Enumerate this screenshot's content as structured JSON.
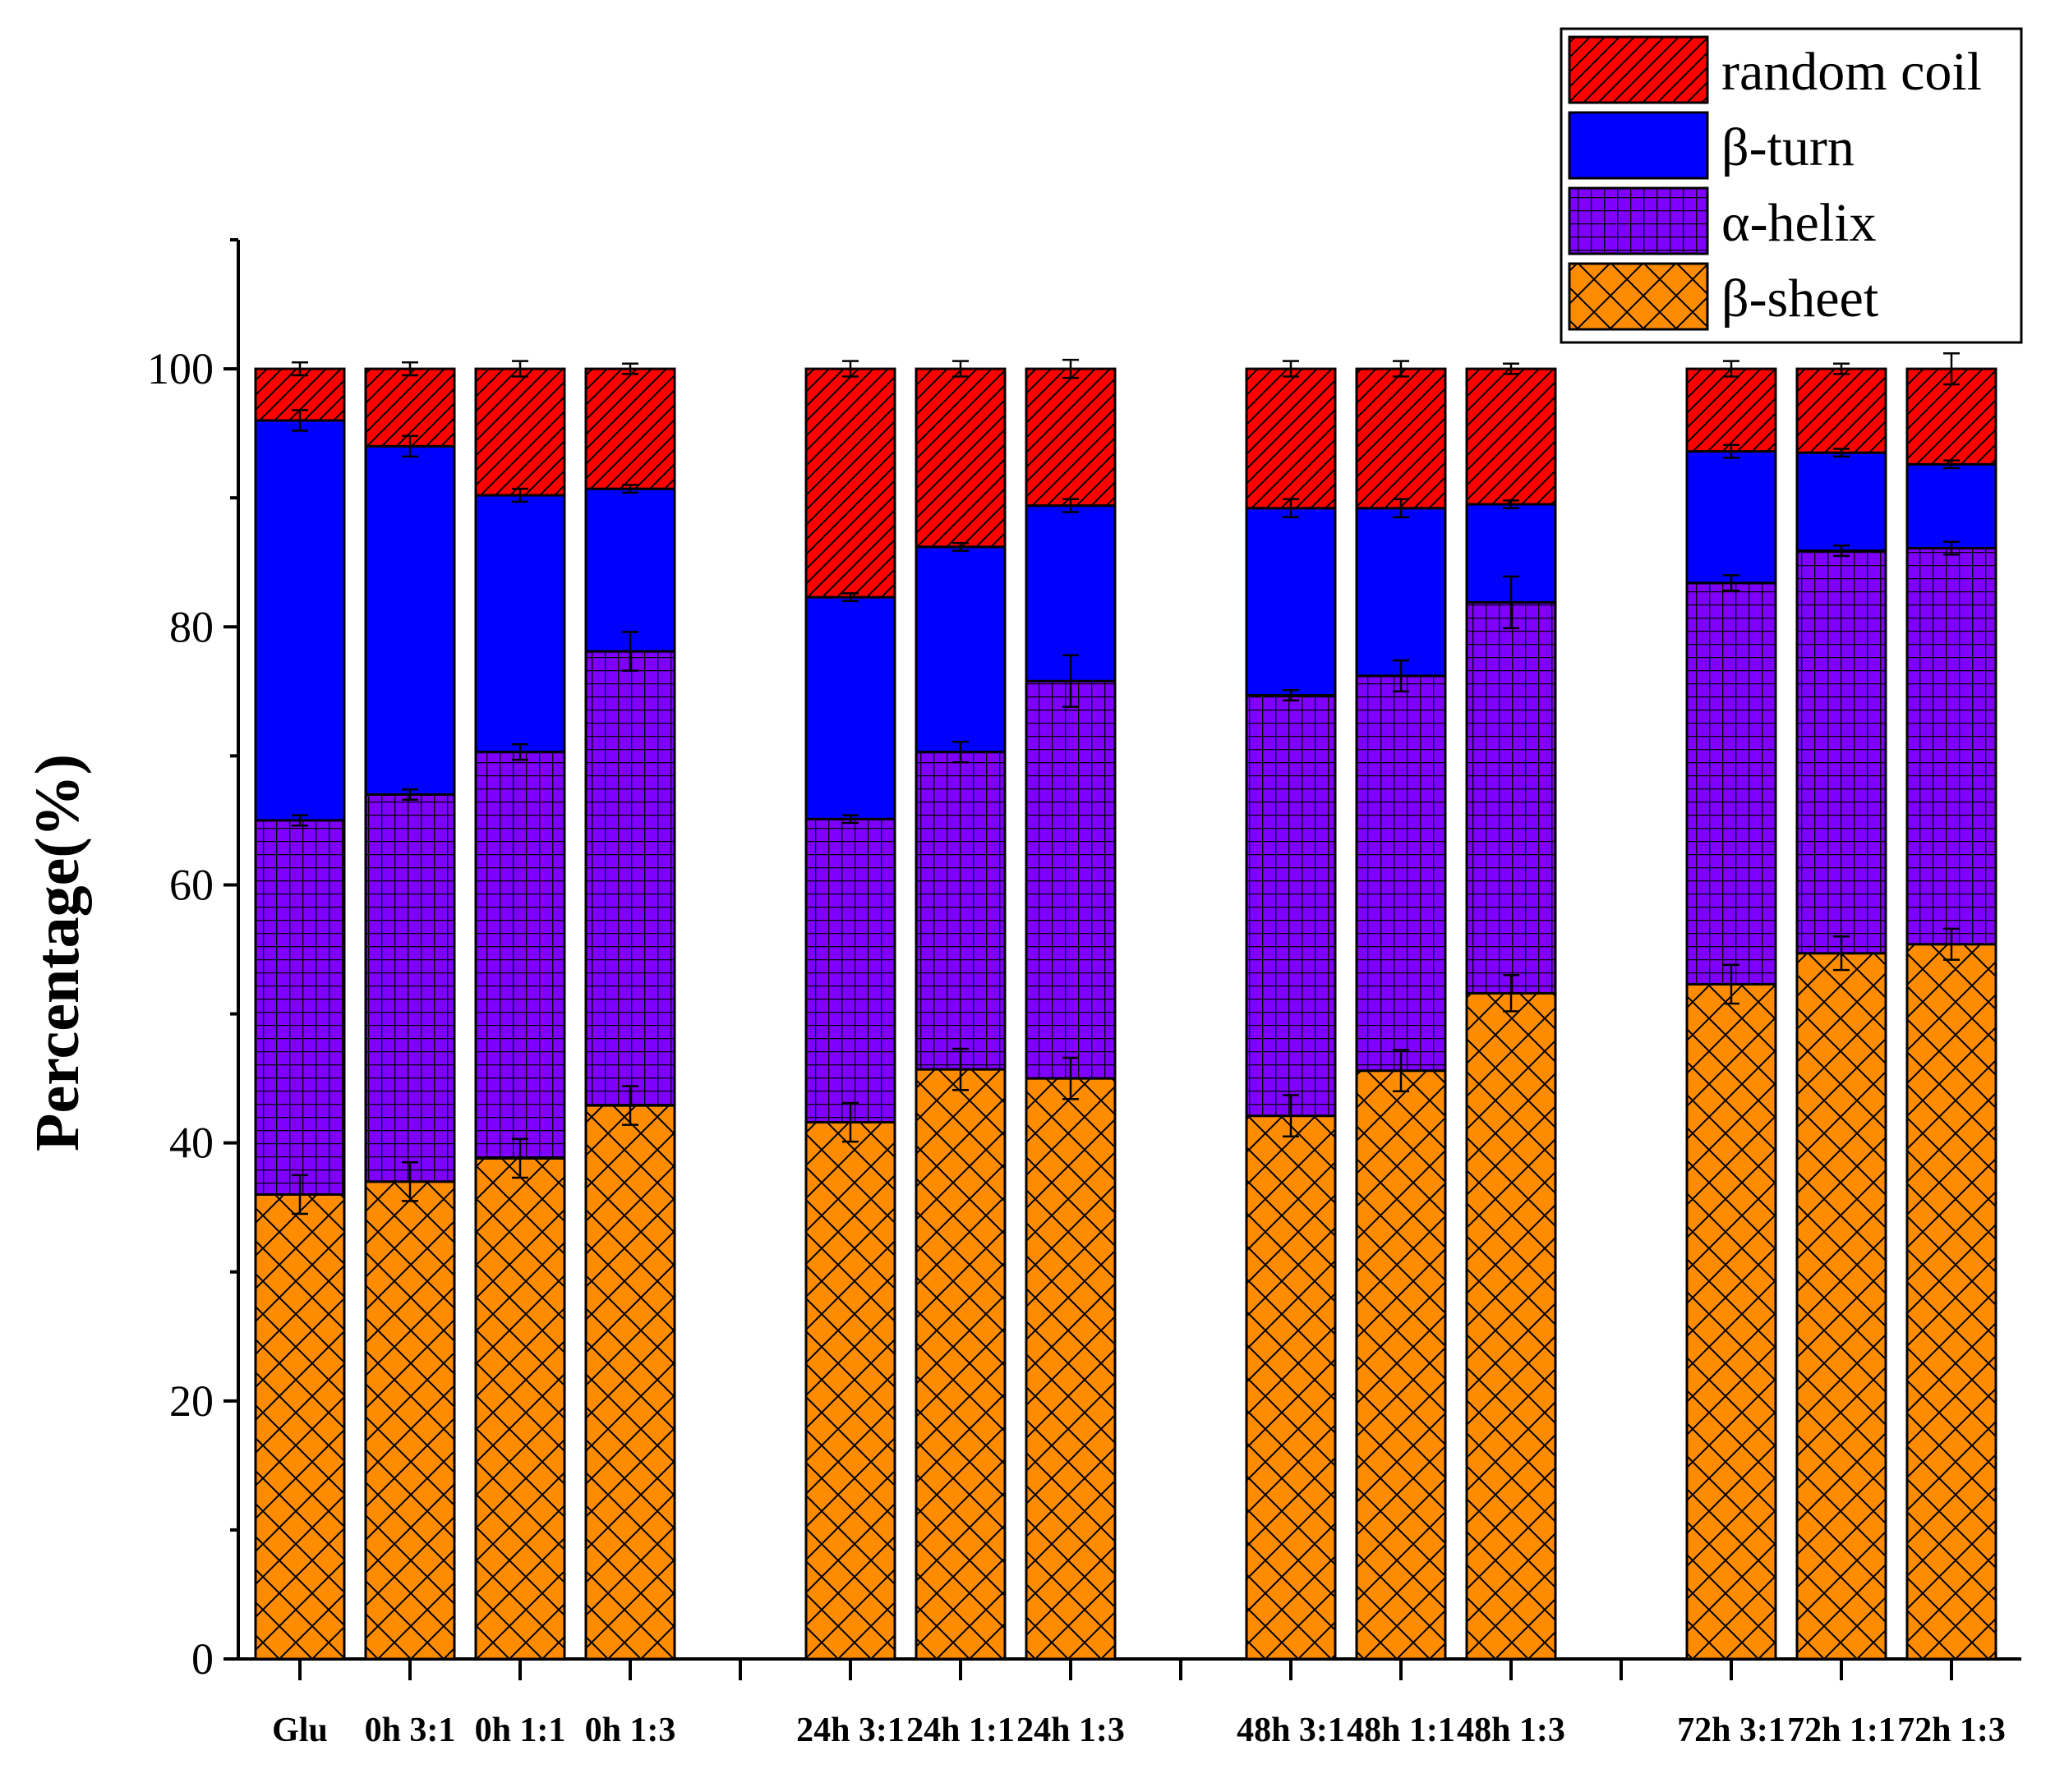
{
  "chart_data": {
    "type": "bar",
    "stacked": true,
    "title": "",
    "xlabel": "",
    "ylabel": "Percentage(%)",
    "ylim": [
      0,
      110
    ],
    "yticks": [
      0,
      20,
      40,
      60,
      80,
      100
    ],
    "legend_position": "top-right",
    "categories": [
      "Glu",
      "0h 3:1",
      "0h 1:1",
      "0h 1:3",
      "24h 3:1",
      "24h 1:1",
      "24h 1:3",
      "48h 3:1",
      "48h 1:1",
      "48h 1:3",
      "72h 3:1",
      "72h 1:1",
      "72h 1:3"
    ],
    "groups": [
      [
        0,
        1,
        2,
        3
      ],
      [
        4,
        5,
        6
      ],
      [
        7,
        8,
        9
      ],
      [
        10,
        11,
        12
      ]
    ],
    "series": [
      {
        "name": "β-sheet",
        "color": "#ff8c00",
        "pattern": "crosshatch-diagonal",
        "values": [
          36.0,
          37.0,
          38.8,
          42.9,
          41.6,
          45.7,
          45.0,
          42.1,
          45.6,
          51.6,
          52.3,
          54.7,
          55.4
        ],
        "errors": [
          1.5,
          1.5,
          1.5,
          1.5,
          1.5,
          1.6,
          1.6,
          1.6,
          1.6,
          1.4,
          1.5,
          1.3,
          1.2
        ]
      },
      {
        "name": "α-helix",
        "color": "#8000ff",
        "pattern": "grid",
        "values": [
          29.0,
          30.0,
          31.5,
          35.2,
          23.5,
          24.6,
          30.8,
          32.6,
          30.6,
          30.3,
          31.1,
          31.2,
          30.7
        ],
        "errors": [
          0.4,
          0.4,
          0.6,
          1.5,
          0.3,
          0.8,
          2.0,
          0.4,
          1.2,
          2.0,
          0.6,
          0.4,
          0.5
        ]
      },
      {
        "name": "β-turn",
        "color": "#0000ff",
        "pattern": "solid",
        "values": [
          31.0,
          27.0,
          19.9,
          12.6,
          17.2,
          15.9,
          13.6,
          14.5,
          13.0,
          7.6,
          10.2,
          7.6,
          6.5
        ],
        "errors": [
          0.8,
          0.8,
          0.5,
          0.3,
          0.3,
          0.3,
          0.5,
          0.7,
          0.7,
          0.3,
          0.5,
          0.3,
          0.3
        ]
      },
      {
        "name": "random coil",
        "color": "#ff0000",
        "pattern": "diagonal",
        "values": [
          4.0,
          6.0,
          9.8,
          9.3,
          17.7,
          13.8,
          10.6,
          10.8,
          10.8,
          10.5,
          6.4,
          6.5,
          7.4
        ],
        "errors": [
          0.5,
          0.5,
          0.6,
          0.4,
          0.6,
          0.6,
          0.7,
          0.6,
          0.6,
          0.4,
          0.6,
          0.4,
          1.2
        ]
      }
    ]
  }
}
